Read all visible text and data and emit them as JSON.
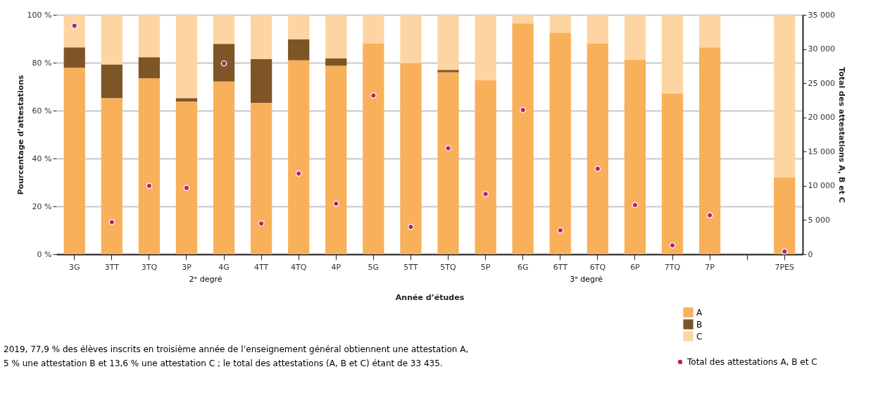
{
  "chart_data": {
    "type": "bar",
    "stacked": true,
    "xlabel": "Année d’études",
    "ylabel": "Pourcentage d’attestations",
    "y2label": "Total des attestations A, B et C",
    "categories": [
      "3G",
      "3TT",
      "3TQ",
      "3P",
      "4G",
      "4TT",
      "4TQ",
      "4P",
      "5G",
      "5TT",
      "5TQ",
      "5P",
      "6G",
      "6TT",
      "6TQ",
      "6P",
      "7TQ",
      "7P",
      null,
      "7PES"
    ],
    "series": [
      {
        "name": "A",
        "type": "bar",
        "color": "#f9b05a",
        "values": [
          77.9,
          65.2,
          73.5,
          63.8,
          72.1,
          63.2,
          81.0,
          78.7,
          88.1,
          79.8,
          76.0,
          72.7,
          96.4,
          92.6,
          88.1,
          81.3,
          67.1,
          86.4,
          null,
          32.1
        ]
      },
      {
        "name": "B",
        "type": "bar",
        "color": "#7e5526",
        "values": [
          8.5,
          14.1,
          8.8,
          1.4,
          15.8,
          18.3,
          8.8,
          3.1,
          0,
          0,
          1.0,
          0,
          0,
          0,
          0,
          0,
          0,
          0,
          null,
          0
        ]
      },
      {
        "name": "C",
        "type": "bar",
        "color": "#fdd5a2",
        "values": [
          13.6,
          20.7,
          17.7,
          34.8,
          12.1,
          18.5,
          10.2,
          18.2,
          11.9,
          20.2,
          23.0,
          27.3,
          3.6,
          7.4,
          11.9,
          18.7,
          32.9,
          13.6,
          null,
          67.9
        ]
      },
      {
        "name": "Total des attestations A, B et C",
        "type": "scatter",
        "axis": "y2",
        "marker": "circle",
        "color": "#b5226b",
        "values": [
          33400,
          4700,
          10000,
          9700,
          27900,
          4500,
          11800,
          7400,
          23200,
          4000,
          15500,
          8800,
          21100,
          3500,
          12500,
          7200,
          1300,
          5700,
          null,
          400
        ]
      }
    ],
    "ylim": [
      0,
      100
    ],
    "yticks": [
      {
        "value": 0,
        "label": "0 %"
      },
      {
        "value": 20,
        "label": "20 %"
      },
      {
        "value": 40,
        "label": "40 %"
      },
      {
        "value": 60,
        "label": "60 %"
      },
      {
        "value": 80,
        "label": "80 %"
      },
      {
        "value": 100,
        "label": "100 %"
      }
    ],
    "y2lim": [
      0,
      35000
    ],
    "y2ticks": [
      0,
      {
        "value": 5000,
        "label": "5 000"
      },
      {
        "value": 10000,
        "label": "10 000"
      },
      {
        "value": 15000,
        "label": "15 000"
      },
      {
        "value": 20000,
        "label": "20 000"
      },
      {
        "value": 25000,
        "label": "25 000"
      },
      {
        "value": 30000,
        "label": "30 000"
      },
      {
        "value": 35000,
        "label": "35 000"
      }
    ],
    "grid": "y",
    "legend": "bottom right",
    "annotations": [
      "2ᵉ degré",
      "3ᵉ degré",
      "2019, 77,9 % des élèves inscrits en troisième année de l’enseignement général obtiennent une attestation A,",
      "5 % une attestation B et 13,6 % une attestation C ; le total des attestations (A, B et C) étant de 33 435."
    ]
  }
}
